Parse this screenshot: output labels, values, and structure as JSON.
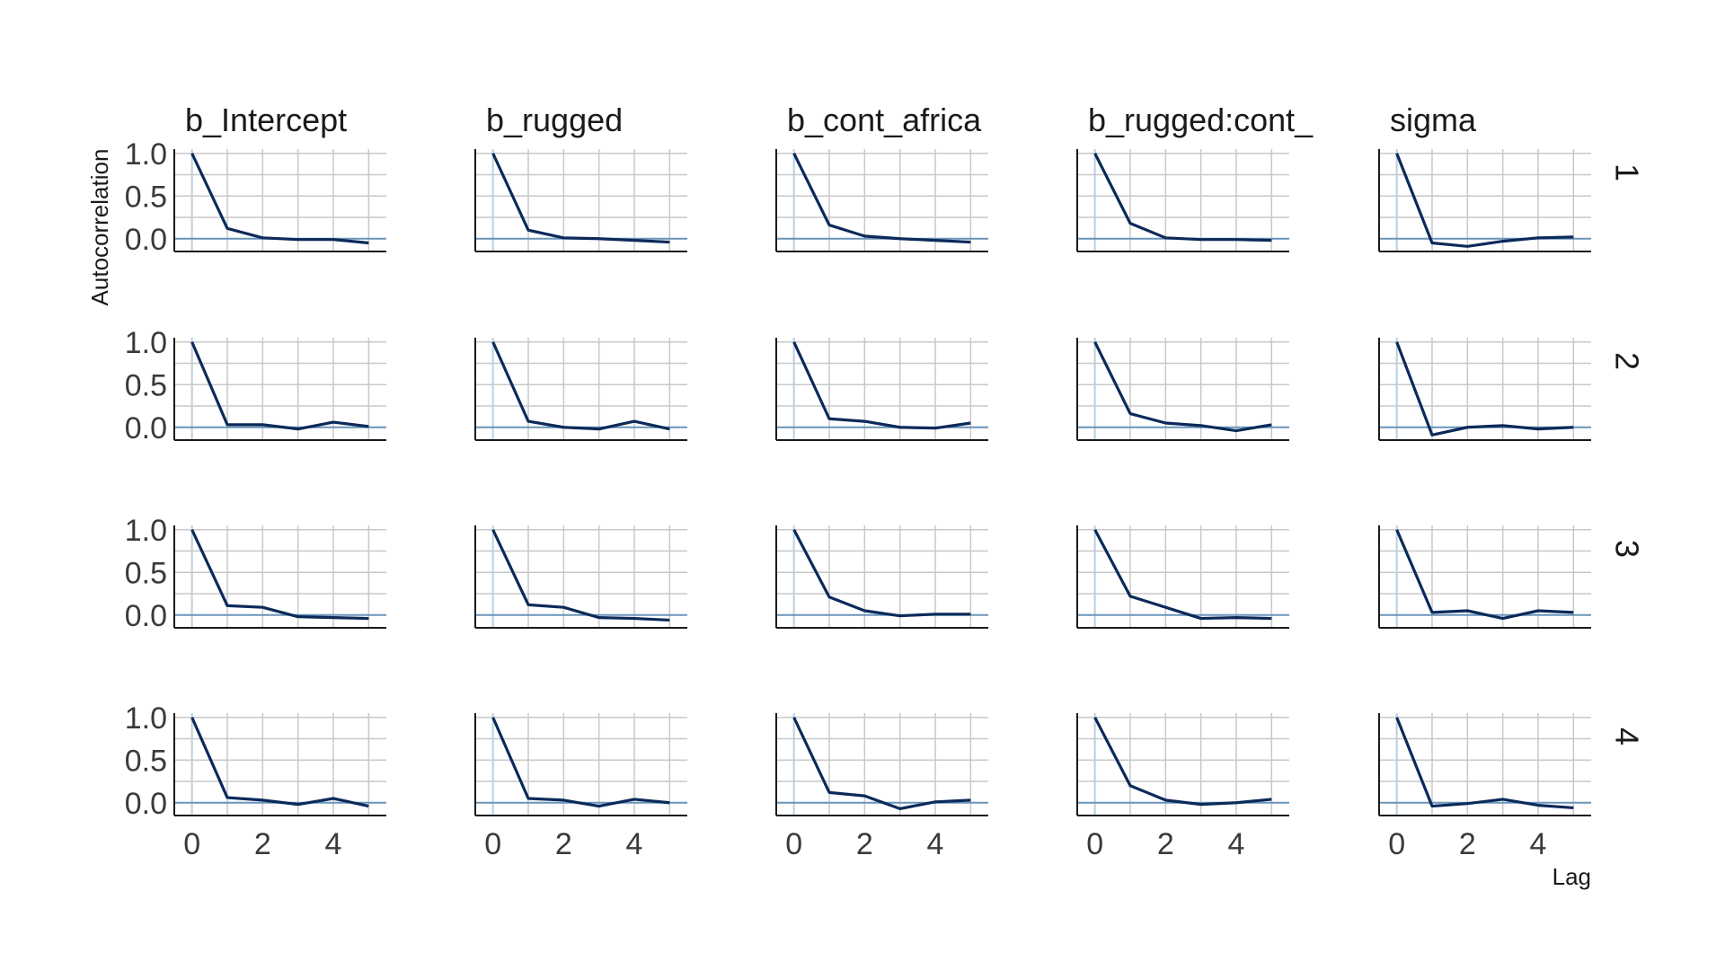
{
  "chart_data": {
    "type": "line",
    "xlabel": "Lag",
    "ylabel": "Autocorrelation",
    "x": [
      0,
      1,
      2,
      3,
      4,
      5
    ],
    "xlim": [
      -0.5,
      5.5
    ],
    "ylim": [
      -0.15,
      1.05
    ],
    "xticks": [
      0,
      2,
      4
    ],
    "yticks": [
      0.0,
      0.5,
      1.0
    ],
    "ytick_labels": [
      "0.0",
      "0.5",
      "1.0"
    ],
    "xtick_labels": [
      "0",
      "2",
      "4"
    ],
    "grid": true,
    "line_color": "#0b2a5a",
    "columns": [
      "b_Intercept",
      "b_rugged",
      "b_cont_africa",
      "b_rugged:cont_",
      "sigma"
    ],
    "rows": [
      "1",
      "2",
      "3",
      "4"
    ],
    "panels": [
      [
        [
          1.0,
          0.12,
          0.01,
          -0.01,
          -0.01,
          -0.05
        ],
        [
          1.0,
          0.1,
          0.01,
          0.0,
          -0.02,
          -0.04
        ],
        [
          1.0,
          0.16,
          0.03,
          0.0,
          -0.02,
          -0.04
        ],
        [
          1.0,
          0.18,
          0.01,
          -0.01,
          -0.01,
          -0.02
        ],
        [
          1.0,
          -0.05,
          -0.09,
          -0.03,
          0.01,
          0.02
        ]
      ],
      [
        [
          1.0,
          0.03,
          0.03,
          -0.02,
          0.06,
          0.01
        ],
        [
          1.0,
          0.07,
          0.0,
          -0.02,
          0.07,
          -0.02
        ],
        [
          1.0,
          0.1,
          0.07,
          0.0,
          -0.01,
          0.05
        ],
        [
          1.0,
          0.16,
          0.05,
          0.02,
          -0.04,
          0.03
        ],
        [
          1.0,
          -0.09,
          0.0,
          0.02,
          -0.02,
          0.0
        ]
      ],
      [
        [
          1.0,
          0.11,
          0.09,
          -0.02,
          -0.03,
          -0.04
        ],
        [
          1.0,
          0.12,
          0.09,
          -0.03,
          -0.04,
          -0.06
        ],
        [
          1.0,
          0.21,
          0.05,
          -0.01,
          0.01,
          0.01
        ],
        [
          1.0,
          0.22,
          0.09,
          -0.04,
          -0.03,
          -0.04
        ],
        [
          1.0,
          0.03,
          0.05,
          -0.04,
          0.05,
          0.03
        ]
      ],
      [
        [
          1.0,
          0.06,
          0.03,
          -0.02,
          0.05,
          -0.04
        ],
        [
          1.0,
          0.05,
          0.03,
          -0.04,
          0.04,
          0.0
        ],
        [
          1.0,
          0.12,
          0.08,
          -0.07,
          0.01,
          0.03
        ],
        [
          1.0,
          0.2,
          0.03,
          -0.02,
          0.0,
          0.04
        ],
        [
          1.0,
          -0.04,
          -0.01,
          0.04,
          -0.03,
          -0.06
        ]
      ]
    ]
  }
}
